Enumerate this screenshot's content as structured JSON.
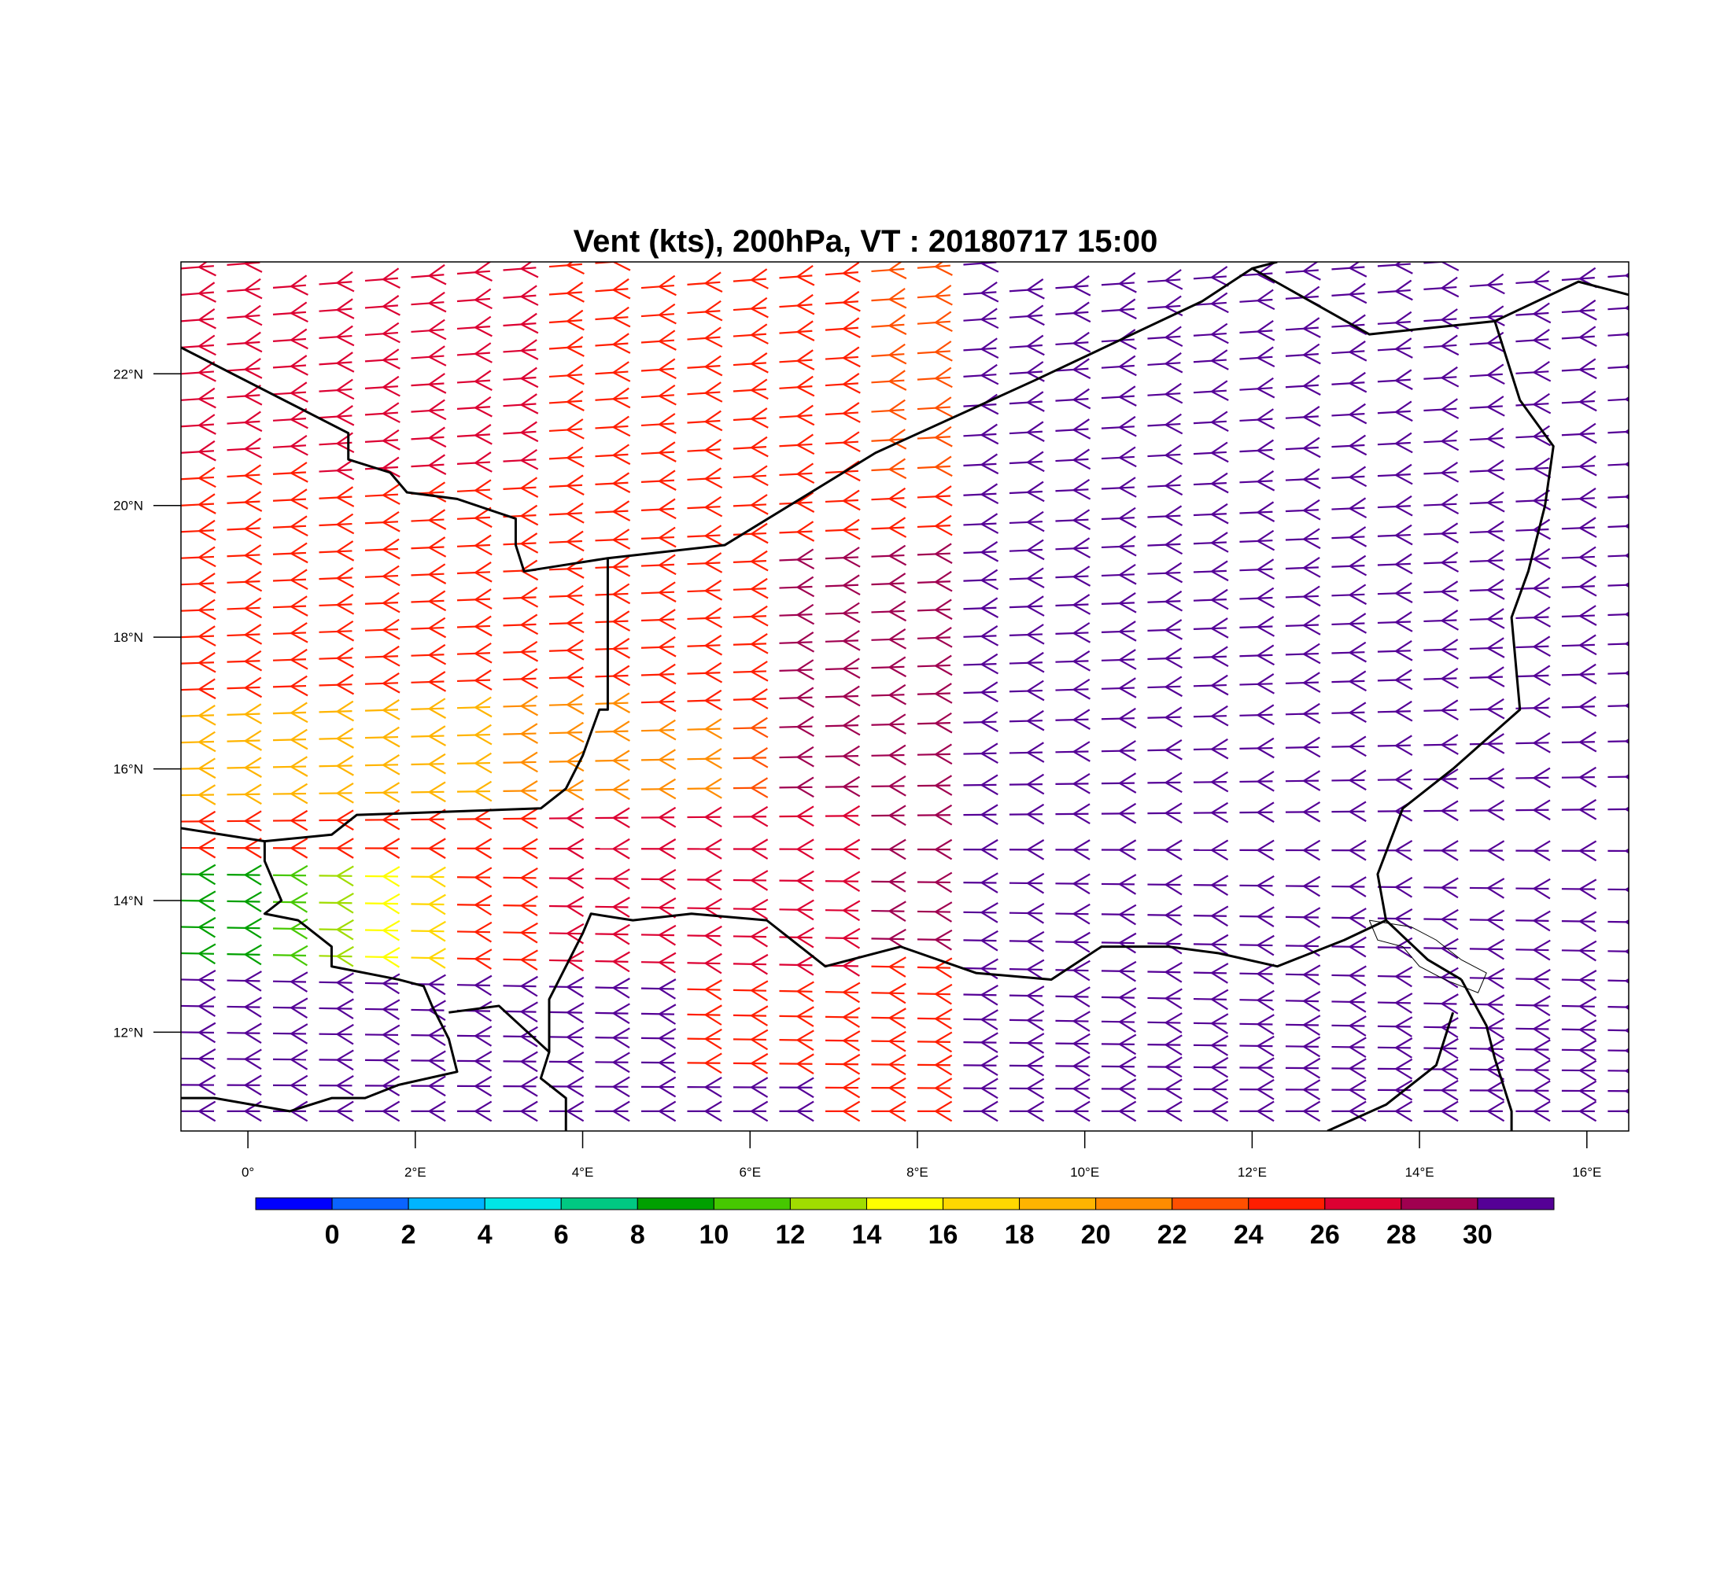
{
  "title": "Vent (kts), 200hPa, VT : 20180717  15:00",
  "map": {
    "lon_range": [
      -0.8,
      16.5
    ],
    "lat_range": [
      10.5,
      23.7
    ],
    "lon_ticks": [
      {
        "value": 0,
        "label": "0°"
      },
      {
        "value": 2,
        "label": "2°E"
      },
      {
        "value": 4,
        "label": "4°E"
      },
      {
        "value": 6,
        "label": "6°E"
      },
      {
        "value": 8,
        "label": "8°E"
      },
      {
        "value": 10,
        "label": "10°E"
      },
      {
        "value": 12,
        "label": "12°E"
      },
      {
        "value": 14,
        "label": "14°E"
      },
      {
        "value": 16,
        "label": "16°E"
      }
    ],
    "lat_ticks": [
      {
        "value": 12,
        "label": "12°N"
      },
      {
        "value": 14,
        "label": "14°N"
      },
      {
        "value": 16,
        "label": "16°N"
      },
      {
        "value": 18,
        "label": "18°N"
      },
      {
        "value": 20,
        "label": "20°N"
      },
      {
        "value": 22,
        "label": "22°N"
      }
    ],
    "borders": [
      [
        [
          -0.8,
          22.4
        ],
        [
          1.2,
          21.1
        ],
        [
          1.2,
          20.7
        ],
        [
          1.7,
          20.5
        ],
        [
          1.9,
          20.2
        ],
        [
          2.5,
          20.1
        ],
        [
          3.2,
          19.8
        ],
        [
          3.2,
          19.4
        ],
        [
          3.3,
          19.0
        ],
        [
          3.8,
          19.1
        ],
        [
          4.3,
          19.2
        ],
        [
          5.7,
          19.4
        ],
        [
          7.5,
          20.8
        ],
        [
          9.4,
          21.9
        ],
        [
          11.4,
          23.1
        ],
        [
          12.0,
          23.6
        ],
        [
          12.3,
          23.7
        ]
      ],
      [
        [
          4.3,
          19.2
        ],
        [
          4.3,
          16.9
        ],
        [
          4.2,
          16.9
        ],
        [
          4.0,
          16.2
        ],
        [
          3.8,
          15.7
        ],
        [
          3.5,
          15.4
        ],
        [
          1.3,
          15.3
        ],
        [
          1.0,
          15.0
        ],
        [
          0.2,
          14.9
        ],
        [
          -0.8,
          15.1
        ]
      ],
      [
        [
          0.2,
          14.9
        ],
        [
          0.2,
          14.6
        ],
        [
          0.4,
          14.0
        ],
        [
          0.2,
          13.8
        ],
        [
          0.6,
          13.7
        ],
        [
          1.0,
          13.3
        ],
        [
          1.0,
          13.0
        ],
        [
          1.8,
          12.8
        ],
        [
          2.1,
          12.7
        ],
        [
          2.2,
          12.4
        ],
        [
          2.4,
          11.9
        ],
        [
          2.5,
          11.4
        ],
        [
          1.8,
          11.2
        ],
        [
          1.4,
          11.0
        ],
        [
          1.0,
          11.0
        ],
        [
          0.5,
          10.8
        ],
        [
          -0.4,
          11.0
        ],
        [
          -0.8,
          11.0
        ]
      ],
      [
        [
          2.4,
          12.3
        ],
        [
          3.0,
          12.4
        ],
        [
          3.6,
          11.7
        ],
        [
          3.5,
          11.3
        ],
        [
          3.8,
          11.0
        ],
        [
          3.8,
          10.5
        ]
      ],
      [
        [
          3.6,
          11.7
        ],
        [
          3.6,
          12.5
        ],
        [
          4.0,
          13.5
        ],
        [
          4.1,
          13.8
        ],
        [
          4.6,
          13.7
        ],
        [
          5.3,
          13.8
        ],
        [
          6.2,
          13.7
        ],
        [
          6.9,
          13.0
        ],
        [
          7.8,
          13.3
        ],
        [
          8.7,
          12.9
        ],
        [
          9.6,
          12.8
        ],
        [
          10.2,
          13.3
        ],
        [
          11.0,
          13.3
        ],
        [
          11.6,
          13.2
        ],
        [
          12.3,
          13.0
        ],
        [
          13.1,
          13.4
        ],
        [
          13.6,
          13.7
        ],
        [
          14.1,
          13.1
        ],
        [
          14.5,
          12.8
        ]
      ],
      [
        [
          12.0,
          23.6
        ],
        [
          13.4,
          22.6
        ],
        [
          14.9,
          22.8
        ],
        [
          15.9,
          23.4
        ],
        [
          16.5,
          23.2
        ]
      ],
      [
        [
          14.9,
          22.8
        ],
        [
          15.2,
          21.6
        ],
        [
          15.6,
          20.9
        ],
        [
          15.5,
          20.0
        ],
        [
          15.3,
          19.0
        ],
        [
          15.1,
          18.3
        ],
        [
          15.2,
          16.9
        ],
        [
          14.4,
          16.0
        ],
        [
          13.8,
          15.4
        ],
        [
          13.5,
          14.4
        ],
        [
          13.6,
          13.7
        ]
      ],
      [
        [
          14.5,
          12.8
        ],
        [
          14.8,
          12.1
        ],
        [
          14.9,
          11.6
        ],
        [
          15.1,
          10.8
        ],
        [
          15.1,
          10.5
        ]
      ],
      [
        [
          14.4,
          12.3
        ],
        [
          14.2,
          11.5
        ],
        [
          13.6,
          10.9
        ],
        [
          12.9,
          10.5
        ]
      ]
    ],
    "lakes": [
      [
        [
          13.4,
          13.7
        ],
        [
          13.9,
          13.6
        ],
        [
          14.2,
          13.4
        ],
        [
          14.5,
          13.1
        ],
        [
          14.8,
          12.9
        ],
        [
          14.7,
          12.6
        ],
        [
          14.3,
          12.8
        ],
        [
          14.0,
          13.0
        ],
        [
          13.8,
          13.3
        ],
        [
          13.5,
          13.4
        ],
        [
          13.4,
          13.7
        ]
      ]
    ]
  },
  "colorbar": {
    "colors": [
      "#0000ff",
      "#0a64ff",
      "#00b4ff",
      "#00e6e6",
      "#00c882",
      "#00a000",
      "#46c800",
      "#a0dc00",
      "#ffff00",
      "#ffd700",
      "#ffb400",
      "#ff8c00",
      "#ff5000",
      "#ff1e00",
      "#dc0032",
      "#a00050",
      "#550096"
    ],
    "labels": [
      "0",
      "2",
      "4",
      "6",
      "8",
      "10",
      "12",
      "14",
      "16",
      "18",
      "20",
      "22",
      "24",
      "26",
      "28",
      "30"
    ]
  }
}
